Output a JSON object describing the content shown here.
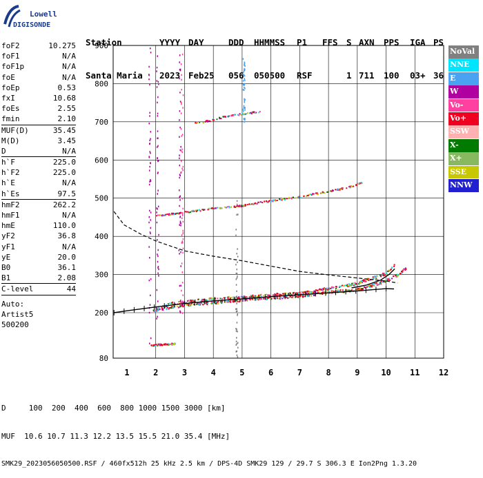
{
  "logo": {
    "line1": "Lowell",
    "line2": "DIGISONDE",
    "icon": "digisonde-logo-icon"
  },
  "header": {
    "labels": [
      "Station",
      "YYYY",
      "DAY",
      "DDD",
      "HHMMSS",
      "P1",
      "FFS",
      "S",
      "AXN",
      "PPS",
      "IGA",
      "PS"
    ],
    "values": [
      "Santa Maria",
      "2023",
      "Feb25",
      "056",
      "050500",
      "RSF",
      "",
      "1",
      "711",
      "100",
      "03+",
      "36"
    ]
  },
  "params_group1": [
    {
      "name": "foF2",
      "value": "10.275"
    },
    {
      "name": "foF1",
      "value": "N/A"
    },
    {
      "name": "foF1p",
      "value": "N/A"
    },
    {
      "name": "foE",
      "value": "N/A"
    },
    {
      "name": "foEp",
      "value": "0.53"
    },
    {
      "name": "fxI",
      "value": "10.68"
    },
    {
      "name": "foEs",
      "value": "2.55"
    },
    {
      "name": "fmin",
      "value": "2.10"
    }
  ],
  "params_group2": [
    {
      "name": "MUF(D)",
      "value": "35.45"
    },
    {
      "name": "M(D)",
      "value": "3.45"
    },
    {
      "name": "D",
      "value": "N/A"
    }
  ],
  "params_group3": [
    {
      "name": "h`F",
      "value": "225.0"
    },
    {
      "name": "h`F2",
      "value": "225.0"
    },
    {
      "name": "h`E",
      "value": "N/A"
    },
    {
      "name": "h`Es",
      "value": "97.5"
    }
  ],
  "params_group4": [
    {
      "name": "hmF2",
      "value": "262.2"
    },
    {
      "name": "hmF1",
      "value": "N/A"
    },
    {
      "name": "hmE",
      "value": "110.0"
    },
    {
      "name": "yF2",
      "value": "36.8"
    },
    {
      "name": "yF1",
      "value": "N/A"
    },
    {
      "name": "yE",
      "value": "20.0"
    },
    {
      "name": "B0",
      "value": "36.1"
    },
    {
      "name": "B1",
      "value": "2.08"
    }
  ],
  "clevel": {
    "name": "C-level",
    "value": "44"
  },
  "auto": {
    "line1": "Auto:",
    "line2": "Artist5",
    "line3": "500200"
  },
  "legend": [
    {
      "label": "NoVal",
      "color": "#808080"
    },
    {
      "label": "NNE",
      "color": "#00e5ff"
    },
    {
      "label": "E",
      "color": "#4aa3f0"
    },
    {
      "label": "W",
      "color": "#b000a0"
    },
    {
      "label": "Vo-",
      "color": "#ff40a0"
    },
    {
      "label": "Vo+",
      "color": "#f00020"
    },
    {
      "label": "SSW",
      "color": "#ffb0b0"
    },
    {
      "label": "X-",
      "color": "#007a00"
    },
    {
      "label": "X+",
      "color": "#88b860"
    },
    {
      "label": "SSE",
      "color": "#c8c800"
    },
    {
      "label": "NNW",
      "color": "#2020d0"
    }
  ],
  "footer": {
    "line1": "D     100  200  400  600  800 1000 1500 3000 [km]",
    "line2": "MUF  10.6 10.7 11.3 12.2 13.5 15.5 21.0 35.4 [MHz]",
    "line3": "SMK29_2023056050500.RSF / 460fx512h 25 kHz 2.5 km / DPS-4D SMK29 129 / 29.7 S 306.3 E Ion2Png 1.3.20"
  },
  "chart_data": {
    "type": "scatter",
    "xlim": [
      0.5,
      12.2
    ],
    "ylim": [
      80,
      900
    ],
    "x_ticks": [
      1,
      2,
      3,
      4,
      5,
      6,
      7,
      8,
      9,
      10,
      11,
      12
    ],
    "y_ticks": [
      80,
      200,
      300,
      400,
      500,
      600,
      700,
      800,
      900
    ],
    "grid": true,
    "xlabel": "",
    "ylabel": "",
    "traces": [
      {
        "name": "F2 O-trace",
        "points": [
          [
            1.9,
            205
          ],
          [
            2.5,
            225
          ],
          [
            3.0,
            230
          ],
          [
            4.0,
            238
          ],
          [
            5.0,
            242
          ],
          [
            6.0,
            248
          ],
          [
            7.0,
            252
          ],
          [
            8.0,
            265
          ],
          [
            8.8,
            275
          ],
          [
            9.5,
            292
          ],
          [
            10.0,
            305
          ],
          [
            10.3,
            330
          ]
        ]
      },
      {
        "name": "F2 X-trace",
        "points": [
          [
            2.2,
            210
          ],
          [
            3.0,
            222
          ],
          [
            4.0,
            228
          ],
          [
            5.0,
            235
          ],
          [
            6.0,
            240
          ],
          [
            7.0,
            245
          ],
          [
            8.0,
            255
          ],
          [
            9.0,
            262
          ],
          [
            9.8,
            280
          ],
          [
            10.4,
            300
          ],
          [
            10.7,
            320
          ]
        ]
      },
      {
        "name": "multiple reflection",
        "points": [
          [
            2.0,
            455
          ],
          [
            3.0,
            465
          ],
          [
            4.0,
            475
          ],
          [
            5.0,
            482
          ],
          [
            6.0,
            495
          ],
          [
            7.0,
            505
          ],
          [
            8.0,
            520
          ],
          [
            8.7,
            530
          ],
          [
            9.2,
            545
          ]
        ]
      },
      {
        "name": "high trace",
        "points": [
          [
            3.3,
            698
          ],
          [
            3.7,
            702
          ],
          [
            4.2,
            712
          ],
          [
            4.6,
            718
          ],
          [
            5.0,
            722
          ],
          [
            5.3,
            725
          ],
          [
            5.6,
            728
          ]
        ]
      },
      {
        "name": "Es",
        "points": [
          [
            1.8,
            115
          ],
          [
            2.1,
            117
          ],
          [
            2.4,
            118
          ],
          [
            2.7,
            120
          ]
        ]
      }
    ],
    "profile_curve": [
      [
        0.55,
        200
      ],
      [
        1,
        205
      ],
      [
        2,
        215
      ],
      [
        3,
        224
      ],
      [
        4,
        231
      ],
      [
        5,
        236
      ],
      [
        6,
        242
      ],
      [
        7,
        247
      ],
      [
        8,
        252
      ],
      [
        9,
        257
      ],
      [
        9.5,
        260
      ],
      [
        10.0,
        263
      ],
      [
        10.275,
        262.2
      ]
    ],
    "profile_upper": [
      [
        8.8,
        265
      ],
      [
        9.3,
        272
      ],
      [
        9.8,
        285
      ],
      [
        10.1,
        300
      ],
      [
        10.3,
        315
      ]
    ],
    "dashed_curve": [
      [
        0.55,
        465
      ],
      [
        0.9,
        430
      ],
      [
        1.5,
        405
      ],
      [
        2.0,
        388
      ],
      [
        3.0,
        362
      ],
      [
        4.0,
        348
      ],
      [
        5.0,
        336
      ],
      [
        6.0,
        322
      ],
      [
        7.0,
        308
      ],
      [
        8.0,
        299
      ],
      [
        9.0,
        291
      ],
      [
        10.0,
        283
      ],
      [
        10.4,
        278
      ]
    ]
  }
}
